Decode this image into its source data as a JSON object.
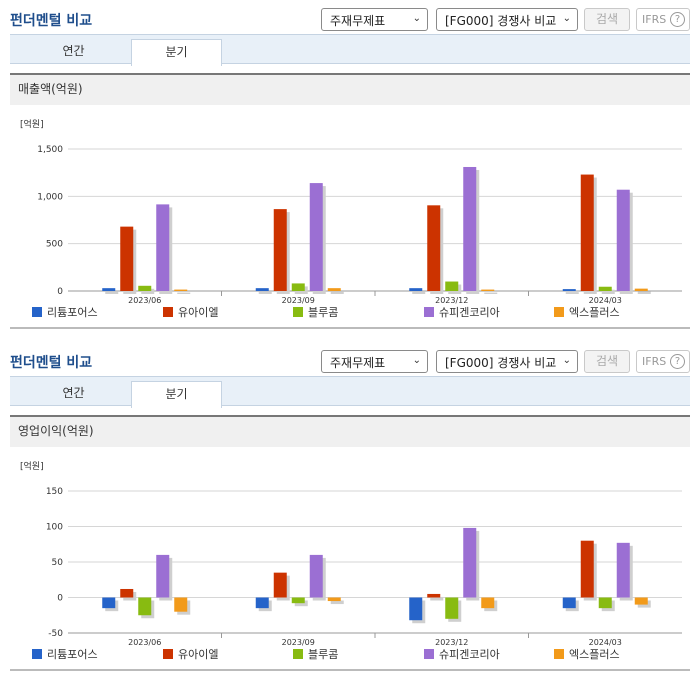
{
  "sections": [
    {
      "title": "펀더멘털 비교",
      "select_report": "주재무제표",
      "select_compare": "[FG000] 경쟁사 비교",
      "search_label": "검색",
      "ifrs_label": "IFRS",
      "ifrs_help": "?",
      "tab_annual": "연간",
      "tab_quarter": "분기",
      "subtitle": "매출액(억원)"
    },
    {
      "title": "펀더멘털 비교",
      "select_report": "주재무제표",
      "select_compare": "[FG000] 경쟁사 비교",
      "search_label": "검색",
      "ifrs_label": "IFRS",
      "ifrs_help": "?",
      "tab_annual": "연간",
      "tab_quarter": "분기",
      "subtitle": "영업이익(억원)"
    }
  ],
  "chart_data": [
    {
      "type": "bar",
      "title": "매출액(억원)",
      "unit": "[억원]",
      "categories": [
        "2023/06",
        "2023/09",
        "2023/12",
        "2024/03"
      ],
      "ylim": [
        0,
        1500
      ],
      "yticks": [
        0,
        500,
        1000,
        1500
      ],
      "ytick_labels": [
        "0",
        "500",
        "1,000",
        "1,500"
      ],
      "grid": true,
      "legend_position": "bottom",
      "series": [
        {
          "name": "리튬포어스",
          "color": "#2563c9",
          "values": [
            30,
            30,
            30,
            20
          ]
        },
        {
          "name": "유아이엘",
          "color": "#cc3300",
          "values": [
            680,
            865,
            905,
            1230
          ]
        },
        {
          "name": "블루콤",
          "color": "#88bb11",
          "values": [
            55,
            80,
            100,
            45
          ]
        },
        {
          "name": "슈피겐코리아",
          "color": "#9b6fd3",
          "values": [
            915,
            1140,
            1310,
            1070
          ]
        },
        {
          "name": "엑스플러스",
          "color": "#f29a1a",
          "values": [
            15,
            30,
            15,
            25
          ]
        }
      ]
    },
    {
      "type": "bar",
      "title": "영업이익(억원)",
      "unit": "[억원]",
      "categories": [
        "2023/06",
        "2023/09",
        "2023/12",
        "2024/03"
      ],
      "ylim": [
        -50,
        150
      ],
      "yticks": [
        -50,
        0,
        50,
        100,
        150
      ],
      "ytick_labels": [
        "-50",
        "0",
        "50",
        "100",
        "150"
      ],
      "grid": true,
      "legend_position": "bottom",
      "series": [
        {
          "name": "리튬포어스",
          "color": "#2563c9",
          "values": [
            -15,
            -15,
            -32,
            -15
          ]
        },
        {
          "name": "유아이엘",
          "color": "#cc3300",
          "values": [
            12,
            35,
            5,
            80
          ]
        },
        {
          "name": "블루콤",
          "color": "#88bb11",
          "values": [
            -25,
            -8,
            -30,
            -15
          ]
        },
        {
          "name": "슈피겐코리아",
          "color": "#9b6fd3",
          "values": [
            60,
            60,
            98,
            77
          ]
        },
        {
          "name": "엑스플러스",
          "color": "#f29a1a",
          "values": [
            -20,
            -5,
            -15,
            -10
          ]
        }
      ]
    }
  ]
}
